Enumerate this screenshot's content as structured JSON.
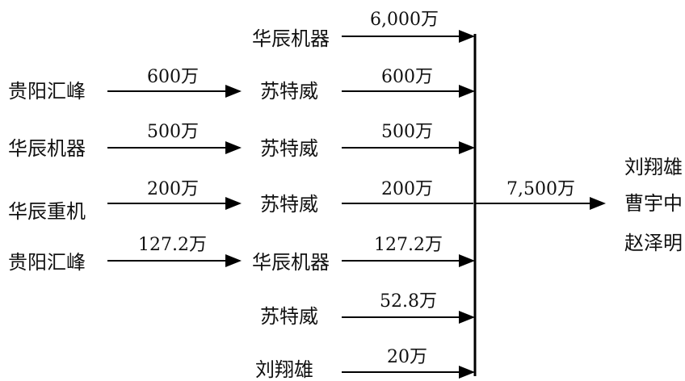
{
  "left_nodes": [
    "贵阳汇峰",
    "华辰机器",
    "华辰重机",
    "贵阳汇峰"
  ],
  "left_amounts": [
    "600万",
    "500万",
    "200万",
    "127.2万"
  ],
  "middle_nodes": [
    "华辰机器",
    "苏特威",
    "苏特威",
    "苏特威",
    "华辰机器",
    "苏特威",
    "刘翔雄"
  ],
  "right_amounts": [
    "6,000万",
    "600万",
    "500万",
    "200万",
    "127.2万",
    "52.8万",
    "20万"
  ],
  "total_amount": "7,500万",
  "recipients": [
    "刘翔雄",
    "曹宇中",
    "赵泽明"
  ],
  "colors": {
    "line": "#000000",
    "text": "#111111"
  }
}
